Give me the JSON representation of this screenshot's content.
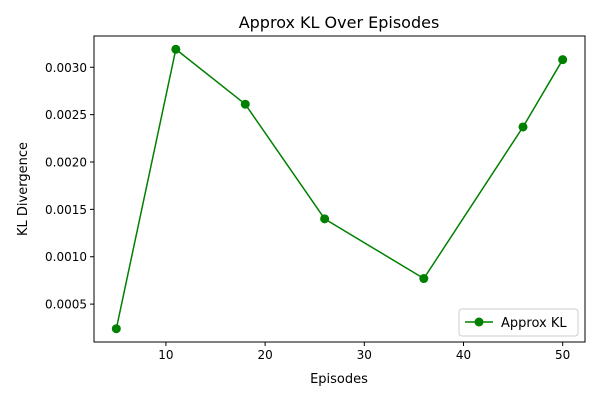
{
  "chart_data": {
    "type": "line",
    "title": "Approx KL Over Episodes",
    "xlabel": "Episodes",
    "ylabel": "KL Divergence",
    "xlim": [
      2.75,
      52.25
    ],
    "ylim": [
      0.0001,
      0.00333
    ],
    "xticks": [
      10,
      20,
      30,
      40,
      50
    ],
    "xtick_labels": [
      "10",
      "20",
      "30",
      "40",
      "50"
    ],
    "yticks": [
      0.0005,
      0.001,
      0.0015,
      0.002,
      0.0025,
      0.003
    ],
    "ytick_labels": [
      "0.0005",
      "0.0010",
      "0.0015",
      "0.0020",
      "0.0025",
      "0.0030"
    ],
    "grid": false,
    "legend_position": "bottom-right",
    "series": [
      {
        "name": "Approx KL",
        "color": "#008000",
        "marker": "circle",
        "x": [
          5,
          11,
          18,
          26,
          36,
          46,
          50
        ],
        "y": [
          0.00024,
          0.00319,
          0.00261,
          0.0014,
          0.00077,
          0.00237,
          0.00308
        ]
      }
    ]
  }
}
